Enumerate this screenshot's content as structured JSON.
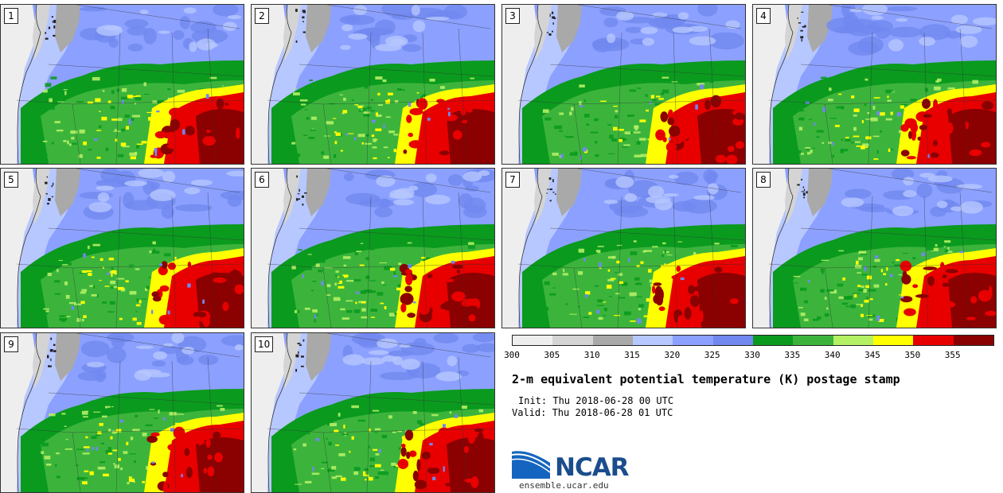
{
  "stamps": [
    "1",
    "2",
    "3",
    "4",
    "5",
    "6",
    "7",
    "8",
    "9",
    "10"
  ],
  "colorbar": {
    "colors": [
      "#eeeeee",
      "#d4d4d4",
      "#a9a9a9",
      "#b7c7ff",
      "#8ca0ff",
      "#7188ef",
      "#0a9a1e",
      "#3cb43c",
      "#b4f064",
      "#ffff00",
      "#e80000",
      "#8b0000"
    ],
    "ticks": [
      "300",
      "305",
      "310",
      "315",
      "320",
      "325",
      "330",
      "335",
      "340",
      "345",
      "350",
      "355"
    ]
  },
  "title": "2-m equivalent potential temperature (K) postage stamp",
  "init": "Init: Thu 2018-06-28 00 UTC",
  "valid": "Valid: Thu 2018-06-28 01 UTC",
  "logo": {
    "name": "NCAR",
    "url": "ensemble.ucar.edu"
  }
}
